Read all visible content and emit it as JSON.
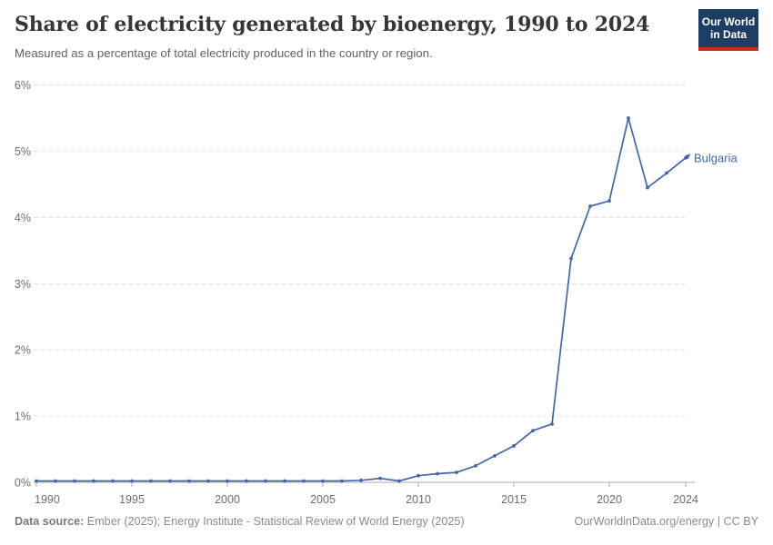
{
  "chart_data": {
    "type": "line",
    "title": "Share of electricity generated by bioenergy, 1990 to 2024",
    "subtitle": "Measured as a percentage of total electricity produced in the country or region.",
    "entity": "Bulgaria",
    "end_label": "Bulgaria",
    "x": [
      1990,
      1991,
      1992,
      1993,
      1994,
      1995,
      1996,
      1997,
      1998,
      1999,
      2000,
      2001,
      2002,
      2003,
      2004,
      2005,
      2006,
      2007,
      2008,
      2009,
      2010,
      2011,
      2012,
      2013,
      2014,
      2015,
      2016,
      2017,
      2018,
      2019,
      2020,
      2021,
      2022,
      2023,
      2024
    ],
    "series": [
      {
        "name": "Bulgaria",
        "color": "#4467a6",
        "values": [
          0.02,
          0.02,
          0.02,
          0.02,
          0.02,
          0.02,
          0.02,
          0.02,
          0.02,
          0.02,
          0.02,
          0.02,
          0.02,
          0.02,
          0.02,
          0.02,
          0.02,
          0.03,
          0.06,
          0.02,
          0.1,
          0.13,
          0.15,
          0.25,
          0.4,
          0.55,
          0.78,
          0.88,
          3.38,
          4.17,
          4.25,
          5.5,
          4.45,
          4.67,
          4.9
        ]
      }
    ],
    "xlabel": "",
    "ylabel": "",
    "xlim": [
      1990,
      2024
    ],
    "ylim": [
      0,
      6
    ],
    "yticks": [
      0,
      1,
      2,
      3,
      4,
      5,
      6
    ],
    "ytick_suffix": "%",
    "xticks": [
      1990,
      1995,
      2000,
      2005,
      2010,
      2015,
      2020,
      2024
    ],
    "grid": "horizontal-dashed",
    "grid_color": "#dedede",
    "axis_color": "#ababab",
    "legend_position": "end-of-line-label"
  },
  "header": {
    "logo": {
      "line1": "Our World",
      "line2": "in Data",
      "bg_color": "#1d3d63",
      "accent_color": "#cc2b24"
    }
  },
  "footer": {
    "source_label": "Data source:",
    "source_text": " Ember (2025); Energy Institute - Statistical Review of World Energy (2025)",
    "credit": "OurWorldinData.org/energy | CC BY"
  }
}
